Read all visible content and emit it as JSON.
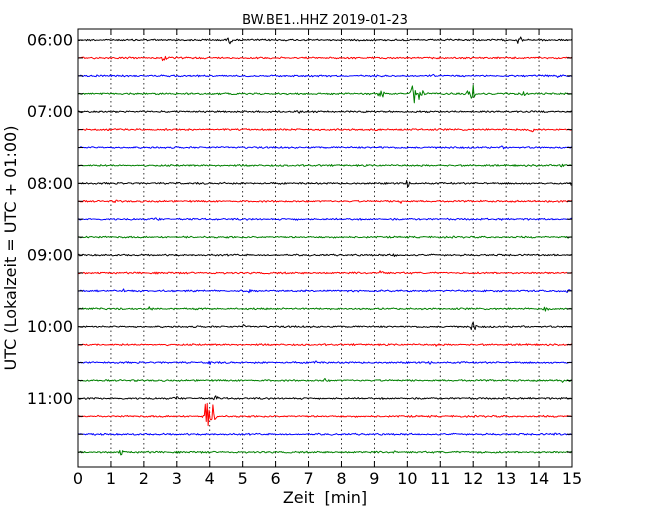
{
  "chart_data": {
    "type": "line",
    "title": "BW.BE1..HHZ 2019-01-23",
    "xlabel": "Zeit  [min]",
    "ylabel": "UTC (Lokalzeit = UTC + 01:00)",
    "xlim": [
      0,
      15
    ],
    "x_ticks": [
      "0",
      "1",
      "2",
      "3",
      "4",
      "5",
      "6",
      "7",
      "8",
      "9",
      "10",
      "11",
      "12",
      "13",
      "14",
      "15"
    ],
    "y_tick_labels": [
      "06:00",
      "07:00",
      "08:00",
      "09:00",
      "10:00",
      "11:00"
    ],
    "grid": "vertical dotted",
    "trace_colors": [
      "#000000",
      "#ff0000",
      "#0000ff",
      "#008000"
    ],
    "traces": [
      {
        "start": "06:00",
        "events": [
          [
            4.6,
            0.5
          ],
          [
            13.4,
            0.6
          ],
          [
            14.2,
            0.3
          ]
        ]
      },
      {
        "start": "06:15",
        "events": [
          [
            2.6,
            0.5
          ]
        ]
      },
      {
        "start": "06:30",
        "events": [
          [
            10.8,
            0.2
          ],
          [
            14.6,
            0.3
          ]
        ]
      },
      {
        "start": "06:45",
        "events": [
          [
            9.2,
            0.8
          ],
          [
            10.2,
            1.6
          ],
          [
            10.4,
            1.1
          ],
          [
            11.9,
            0.8
          ],
          [
            12.0,
            1.2
          ],
          [
            13.5,
            0.5
          ]
        ]
      },
      {
        "start": "07:00",
        "events": [
          [
            6.7,
            0.3
          ]
        ]
      },
      {
        "start": "07:15",
        "events": [
          [
            13.8,
            0.4
          ]
        ]
      },
      {
        "start": "07:30",
        "events": [
          [
            9.2,
            0.2
          ],
          [
            12.9,
            0.2
          ]
        ]
      },
      {
        "start": "07:45",
        "events": [
          [
            14.7,
            0.3
          ]
        ]
      },
      {
        "start": "08:00",
        "events": [
          [
            3.0,
            0.3
          ],
          [
            4.5,
            0.3
          ],
          [
            10.0,
            0.5
          ],
          [
            15.0,
            0.4
          ]
        ]
      },
      {
        "start": "08:15",
        "events": [
          [
            1.2,
            0.3
          ],
          [
            9.8,
            0.3
          ]
        ]
      },
      {
        "start": "08:30",
        "events": [
          [
            2.4,
            0.3
          ],
          [
            6.6,
            0.2
          ],
          [
            12.9,
            0.2
          ]
        ]
      },
      {
        "start": "08:45",
        "events": [
          [
            0.3,
            0.2
          ]
        ]
      },
      {
        "start": "09:00",
        "events": [
          [
            9.6,
            0.3
          ]
        ]
      },
      {
        "start": "09:15",
        "events": [
          [
            9.2,
            0.4
          ]
        ]
      },
      {
        "start": "09:30",
        "events": [
          [
            1.4,
            0.3
          ],
          [
            5.2,
            0.3
          ],
          [
            14.9,
            0.3
          ]
        ]
      },
      {
        "start": "09:45",
        "events": [
          [
            2.2,
            0.3
          ],
          [
            7.2,
            0.2
          ],
          [
            14.2,
            0.4
          ]
        ]
      },
      {
        "start": "10:00",
        "events": [
          [
            5.0,
            0.3
          ],
          [
            12.0,
            0.7
          ]
        ]
      },
      {
        "start": "10:15",
        "events": [
          [
            10.9,
            0.3
          ]
        ]
      },
      {
        "start": "10:30",
        "events": [
          [
            4.0,
            0.3
          ],
          [
            7.2,
            0.3
          ],
          [
            10.7,
            0.2
          ]
        ]
      },
      {
        "start": "10:45",
        "events": [
          [
            7.5,
            0.3
          ],
          [
            14.7,
            0.3
          ]
        ]
      },
      {
        "start": "11:00",
        "events": [
          [
            3.0,
            0.3
          ],
          [
            4.2,
            0.4
          ]
        ]
      },
      {
        "start": "11:15",
        "events": [
          [
            3.9,
            2.1
          ],
          [
            4.1,
            1.6
          ]
        ]
      },
      {
        "start": "11:30",
        "events": [
          [
            14.5,
            0.3
          ]
        ]
      },
      {
        "start": "11:45",
        "events": [
          [
            1.3,
            0.4
          ],
          [
            9.6,
            0.2
          ],
          [
            12.2,
            0.3
          ]
        ]
      }
    ]
  }
}
